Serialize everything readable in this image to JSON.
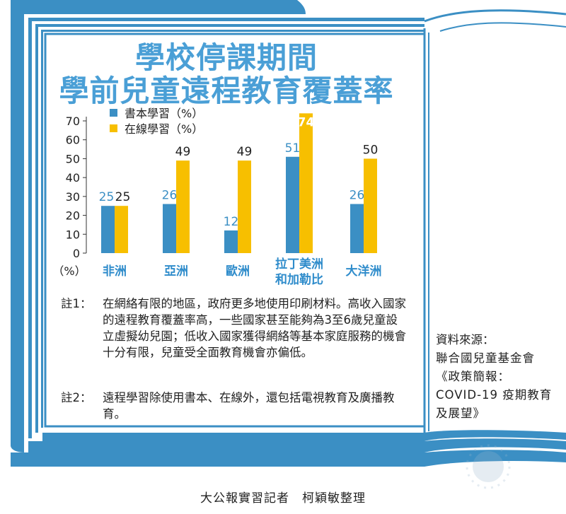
{
  "title": [
    "學校停課期間",
    "學前兒童遠程教育覆蓋率"
  ],
  "colors": {
    "book": "#3b8fc4",
    "online": "#f7bf00",
    "frame": "#3b8fc4",
    "title": "#4a9fd6",
    "category": "#2f8ccb"
  },
  "chart_data": {
    "type": "bar",
    "unit_label": "（%）",
    "categories": [
      [
        "非洲"
      ],
      [
        "亞洲"
      ],
      [
        "歐洲"
      ],
      [
        "拉丁美洲",
        "和加勒比"
      ],
      [
        "大洋洲"
      ]
    ],
    "series": [
      {
        "name": "書本學習（%）",
        "values": [
          25,
          26,
          12,
          51,
          26
        ]
      },
      {
        "name": "在線學習（%）",
        "values": [
          25,
          49,
          49,
          74,
          50
        ]
      }
    ],
    "yticks": [
      0,
      10,
      20,
      30,
      40,
      50,
      60,
      70
    ],
    "ylim": [
      0,
      70
    ],
    "legend_position": "top-left"
  },
  "notes": [
    {
      "label": "註1：",
      "text": "在網絡有限的地區，政府更多地使用印刷材料。高收入國家的遠程教育覆蓋率高，一些國家甚至能夠為3至6歲兒童設立虛擬幼兒園；低收入國家獲得網絡等基本家庭服務的機會十分有限，兒童受全面教育機會亦偏低。"
    },
    {
      "label": "註2：",
      "text": "遠程學習除使用書本、在線外，還包括電視教育及廣播教育。"
    }
  ],
  "source": {
    "heading": "資料來源：",
    "text": "聯合國兒童基金會《政策簡報：COVID-19 疫期教育及展望》"
  },
  "credit": "大公報實習記者　柯穎敏整理"
}
